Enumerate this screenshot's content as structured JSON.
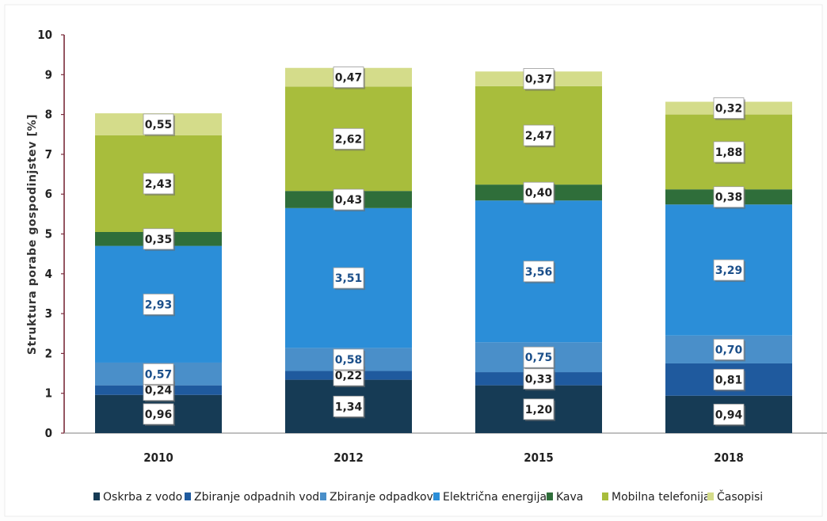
{
  "chart_data": {
    "type": "bar",
    "stacked": true,
    "title": "",
    "xlabel": "",
    "ylabel": "Struktura porabe gospodinjstev [%]",
    "ylim": [
      0,
      10
    ],
    "yticks": [
      0,
      1,
      2,
      3,
      4,
      5,
      6,
      7,
      8,
      9,
      10
    ],
    "grid": false,
    "legend_position": "bottom",
    "categories": [
      "2010",
      "2012",
      "2015",
      "2018"
    ],
    "series": [
      {
        "name": "Oskrba z vodo",
        "color": "#163b55",
        "values": [
          0.96,
          1.34,
          1.2,
          0.94
        ],
        "labels": [
          "0,96",
          "1,34",
          "1,20",
          "0,94"
        ],
        "label_color": "#222222"
      },
      {
        "name": "Zbiranje odpadnih voda",
        "color": "#1f5a9e",
        "values": [
          0.24,
          0.22,
          0.33,
          0.81
        ],
        "labels": [
          "0,24",
          "0,22",
          "0,33",
          "0,81"
        ],
        "label_color": "#222222"
      },
      {
        "name": "Zbiranje odpadkov",
        "color": "#4a8fc9",
        "values": [
          0.57,
          0.58,
          0.75,
          0.7
        ],
        "labels": [
          "0,57",
          "0,58",
          "0,75",
          "0,70"
        ],
        "label_color": "#1b4f8a"
      },
      {
        "name": "Električna energija",
        "color": "#2b8ed8",
        "values": [
          2.93,
          3.51,
          3.56,
          3.29
        ],
        "labels": [
          "2,93",
          "3,51",
          "3,56",
          "3,29"
        ],
        "label_color": "#1b4f8a"
      },
      {
        "name": "Kava",
        "color": "#2f6e3a",
        "values": [
          0.35,
          0.43,
          0.4,
          0.38
        ],
        "labels": [
          "0,35",
          "0,43",
          "0,40",
          "0,38"
        ],
        "label_color": "#222222"
      },
      {
        "name": "Mobilna telefonija",
        "color": "#a8bd3c",
        "values": [
          2.43,
          2.62,
          2.47,
          1.88
        ],
        "labels": [
          "2,43",
          "2,62",
          "2,47",
          "1,88"
        ],
        "label_color": "#222222"
      },
      {
        "name": "Časopisi",
        "color": "#d4dc8a",
        "values": [
          0.55,
          0.47,
          0.37,
          0.32
        ],
        "labels": [
          "0,55",
          "0,47",
          "0,37",
          "0,32"
        ],
        "label_color": "#222222"
      }
    ]
  }
}
